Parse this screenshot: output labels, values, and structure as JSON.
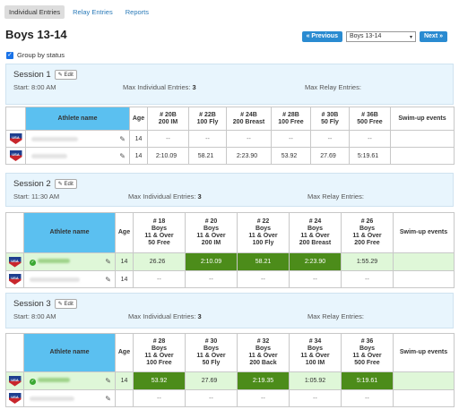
{
  "tabs": [
    "Individual Entries",
    "Relay Entries",
    "Reports"
  ],
  "title": "Boys 13-14",
  "pager": {
    "previous": "« Previous",
    "selected": "Boys 13-14",
    "next": "Next »"
  },
  "group_by_status": "Group by status",
  "edit_label": "Edit",
  "table_labels": {
    "athlete": "Athlete name",
    "age": "Age",
    "swimup": "Swim-up events"
  },
  "sessions": [
    {
      "title": "Session 1",
      "start": "Start: 8:00 AM",
      "max_ind_label": "Max Individual Entries:",
      "max_ind": "3",
      "max_relay": "Max Relay Entries:",
      "events": [
        {
          "n": "# 20B",
          "l1": "200 IM"
        },
        {
          "n": "# 22B",
          "l1": "100 Fly"
        },
        {
          "n": "# 24B",
          "l1": "200 Breast"
        },
        {
          "n": "# 28B",
          "l1": "100 Free"
        },
        {
          "n": "# 30B",
          "l1": "50 Fly"
        },
        {
          "n": "# 36B",
          "l1": "500 Free"
        }
      ],
      "rows": [
        {
          "age": "14",
          "times": [
            "--",
            "--",
            "--",
            "--",
            "--",
            "--"
          ]
        },
        {
          "age": "14",
          "times": [
            "2:10.09",
            "58.21",
            "2:23.90",
            "53.92",
            "27.69",
            "5:19.61"
          ]
        }
      ]
    },
    {
      "title": "Session 2",
      "start": "Start: 11:30 AM",
      "max_ind_label": "Max Individual Entries:",
      "max_ind": "3",
      "max_relay": "Max Relay Entries:",
      "events": [
        {
          "n": "# 18",
          "l1": "Boys",
          "l2": "11 & Over",
          "l3": "50 Free"
        },
        {
          "n": "# 20",
          "l1": "Boys",
          "l2": "11 & Over",
          "l3": "200 IM"
        },
        {
          "n": "# 22",
          "l1": "Boys",
          "l2": "11 & Over",
          "l3": "100 Fly"
        },
        {
          "n": "# 24",
          "l1": "Boys",
          "l2": "11 & Over",
          "l3": "200 Breast"
        },
        {
          "n": "# 26",
          "l1": "Boys",
          "l2": "11 & Over",
          "l3": "200 Free"
        }
      ],
      "rows": [
        {
          "age": "14",
          "times": [
            "26.26",
            "2:10.09",
            "58.21",
            "2:23.90",
            "1:55.29"
          ]
        },
        {
          "age": "14",
          "times": [
            "--",
            "--",
            "--",
            "--",
            "--"
          ]
        }
      ]
    },
    {
      "title": "Session 3",
      "start": "Start: 8:00 AM",
      "max_ind_label": "Max Individual Entries:",
      "max_ind": "3",
      "max_relay": "Max Relay Entries:",
      "events": [
        {
          "n": "# 28",
          "l1": "Boys",
          "l2": "11 & Over",
          "l3": "100 Free"
        },
        {
          "n": "# 30",
          "l1": "Boys",
          "l2": "11 & Over",
          "l3": "50 Fly"
        },
        {
          "n": "# 32",
          "l1": "Boys",
          "l2": "11 & Over",
          "l3": "200 Back"
        },
        {
          "n": "# 34",
          "l1": "Boys",
          "l2": "11 & Over",
          "l3": "100 IM"
        },
        {
          "n": "# 36",
          "l1": "Boys",
          "l2": "11 & Over",
          "l3": "500 Free"
        }
      ],
      "rows": [
        {
          "age": "14",
          "times": [
            "53.92",
            "27.69",
            "2:19.35",
            "1:05.92",
            "5:19.61"
          ]
        },
        {
          "age": "",
          "times": [
            "--",
            "--",
            "--",
            "--",
            "--"
          ]
        }
      ]
    }
  ],
  "colors": {
    "accent": "#2a8bd1",
    "header": "#5bc0f0",
    "entered": "#4c8c1a",
    "session_bg": "#e8f5fd"
  }
}
